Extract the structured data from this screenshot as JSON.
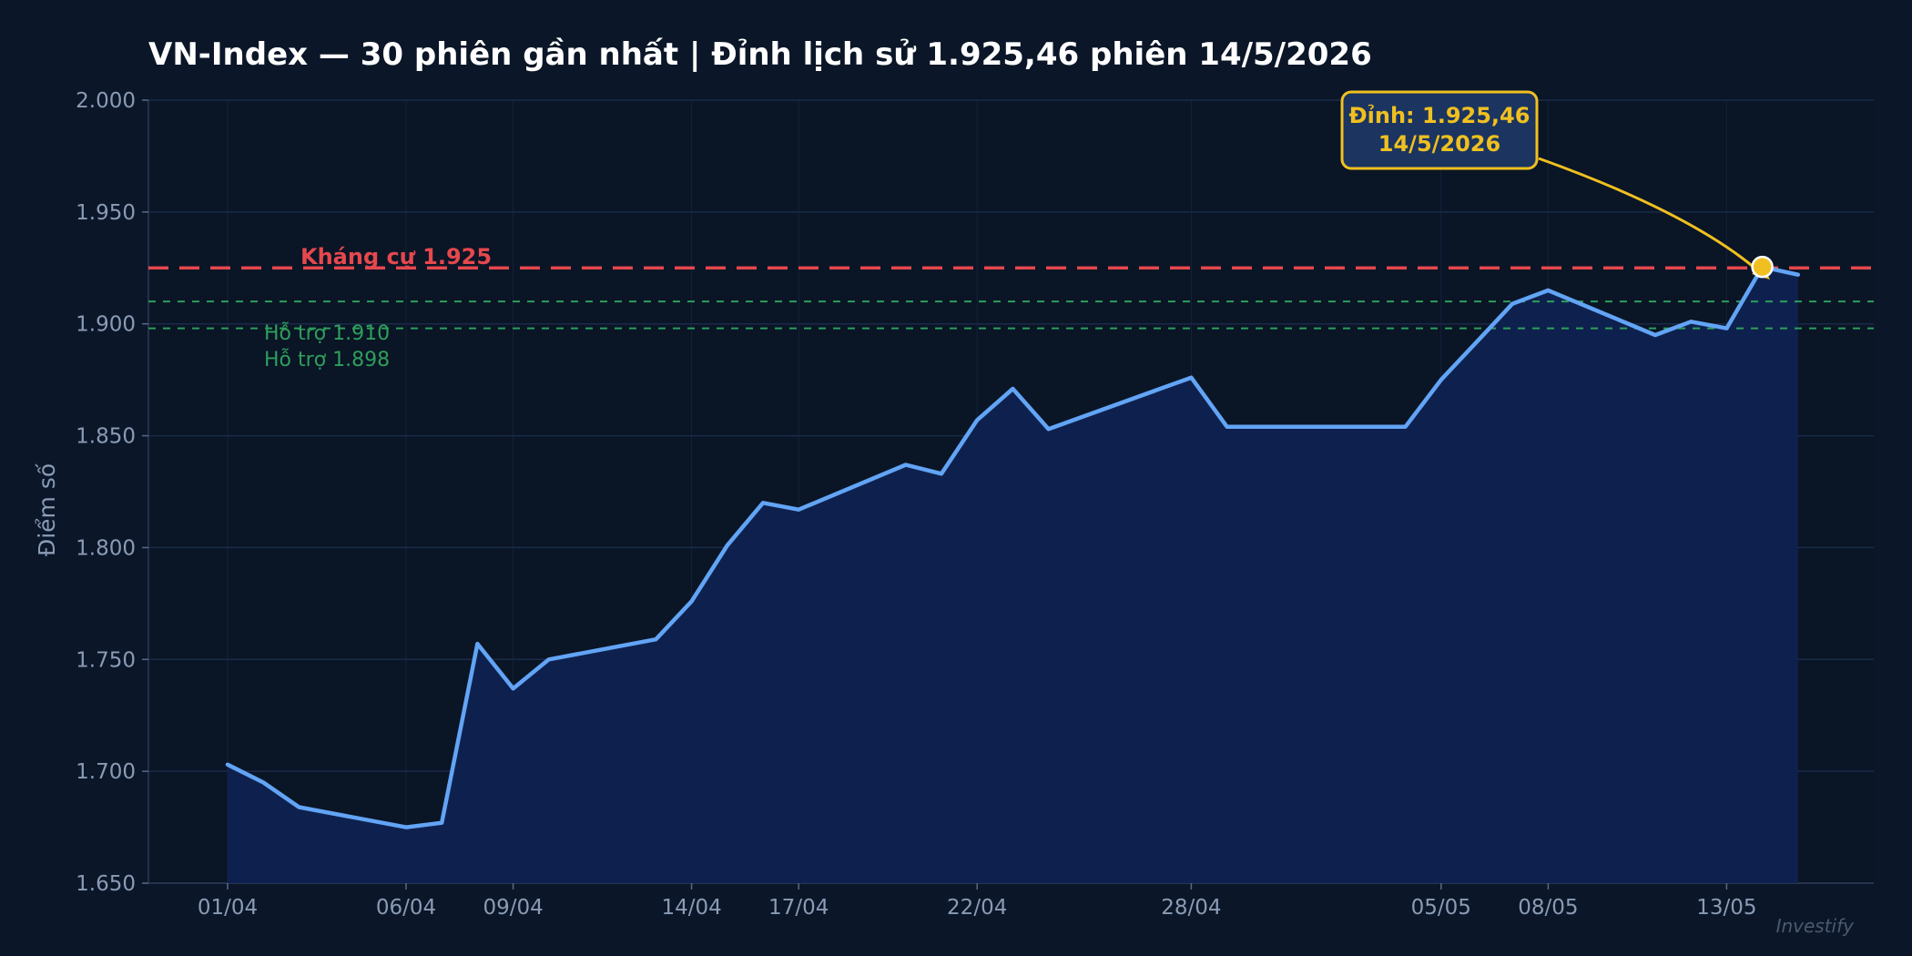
{
  "chart_data": {
    "type": "area",
    "title": "VN-Index — 30 phiên gần nhất  |  Đỉnh lịch sử 1.925,46 phiên 14/5/2026",
    "ylabel": "Điểm số",
    "xlabel": "",
    "ylim": [
      1650,
      2000
    ],
    "y_ticks": [
      "1.650",
      "1.700",
      "1.750",
      "1.800",
      "1.850",
      "1.900",
      "1.950",
      "2.000"
    ],
    "y_tick_values": [
      1650,
      1700,
      1750,
      1800,
      1850,
      1900,
      1950,
      2000
    ],
    "x_ticks": [
      {
        "label": "01/04",
        "index": 0
      },
      {
        "label": "06/04",
        "index": 5
      },
      {
        "label": "09/04",
        "index": 8
      },
      {
        "label": "14/04",
        "index": 13
      },
      {
        "label": "17/04",
        "index": 16
      },
      {
        "label": "22/04",
        "index": 21
      },
      {
        "label": "28/04",
        "index": 27
      },
      {
        "label": "05/05",
        "index": 34
      },
      {
        "label": "08/05",
        "index": 37
      },
      {
        "label": "13/05",
        "index": 42
      }
    ],
    "series": [
      {
        "values": [
          {
            "x": 0,
            "y": 1703
          },
          {
            "x": 1,
            "y": 1695
          },
          {
            "x": 2,
            "y": 1684
          },
          {
            "x": 5,
            "y": 1675
          },
          {
            "x": 6,
            "y": 1677
          },
          {
            "x": 7,
            "y": 1757
          },
          {
            "x": 8,
            "y": 1737
          },
          {
            "x": 9,
            "y": 1750
          },
          {
            "x": 12,
            "y": 1759
          },
          {
            "x": 13,
            "y": 1776
          },
          {
            "x": 14,
            "y": 1801
          },
          {
            "x": 15,
            "y": 1820
          },
          {
            "x": 16,
            "y": 1817
          },
          {
            "x": 19,
            "y": 1837
          },
          {
            "x": 20,
            "y": 1833
          },
          {
            "x": 21,
            "y": 1857
          },
          {
            "x": 22,
            "y": 1871
          },
          {
            "x": 23,
            "y": 1853
          },
          {
            "x": 27,
            "y": 1876
          },
          {
            "x": 28,
            "y": 1854
          },
          {
            "x": 33,
            "y": 1854
          },
          {
            "x": 34,
            "y": 1875
          },
          {
            "x": 35,
            "y": 1892
          },
          {
            "x": 36,
            "y": 1909
          },
          {
            "x": 37,
            "y": 1915
          },
          {
            "x": 40,
            "y": 1895
          },
          {
            "x": 41,
            "y": 1901
          },
          {
            "x": 42,
            "y": 1898
          },
          {
            "x": 43,
            "y": 1925.46
          },
          {
            "x": 44,
            "y": 1922
          }
        ]
      }
    ],
    "resistance": {
      "value": 1925,
      "label": "Kháng cự  1.925"
    },
    "supports": [
      {
        "value": 1910,
        "label": "Hỗ trợ 1.910"
      },
      {
        "value": 1898,
        "label": "Hỗ trợ 1.898"
      }
    ],
    "peak": {
      "x": 43,
      "y": 1925.46,
      "label_line1": "Đỉnh: 1.925,46",
      "label_line2": "14/5/2026"
    },
    "watermark": "Investify",
    "grid": true,
    "colors": {
      "background": "#0b1628",
      "plot_background": "#0a1526",
      "line": "#62a4f5",
      "area": "#0f2250",
      "grid": "#1a2b48",
      "resistance": "#e5484d",
      "support": "#2e9e5b",
      "peak": "#f0c020",
      "peak_box": "#1b3560"
    }
  }
}
